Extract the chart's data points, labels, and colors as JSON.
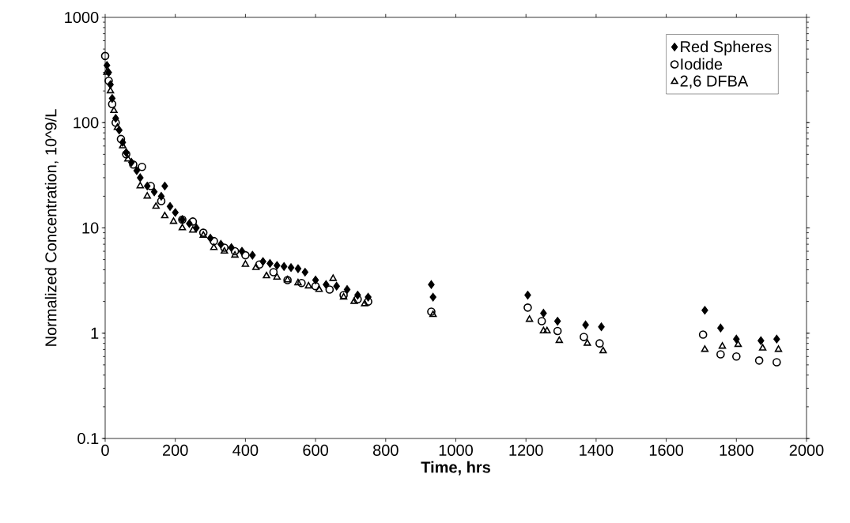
{
  "chart_data": {
    "type": "scatter",
    "xlabel": "Time, hrs",
    "ylabel": "Normalized Concentration, 10^9/L",
    "log": "y",
    "xlim": [
      0,
      2000
    ],
    "ylim": [
      0.1,
      1000
    ],
    "xticks": [
      0,
      200,
      400,
      600,
      800,
      1000,
      1200,
      1400,
      1600,
      1800,
      2000
    ],
    "yticks": [
      0.1,
      1,
      10,
      100,
      1000
    ],
    "legend": "top right",
    "grid": false,
    "series": [
      {
        "name": "Red Spheres",
        "color": "#000000",
        "marker": "diamond",
        "x": [
          5,
          10,
          15,
          20,
          25,
          30,
          40,
          50,
          60,
          75,
          90,
          100,
          120,
          140,
          160,
          170,
          185,
          200,
          220,
          240,
          260,
          280,
          300,
          330,
          360,
          390,
          420,
          450,
          470,
          490,
          510,
          530,
          550,
          570,
          600,
          630,
          660,
          690,
          720,
          750,
          930,
          935,
          1205,
          1250,
          1290,
          1370,
          1415,
          1710,
          1755,
          1800,
          1870,
          1915
        ],
        "values": [
          350,
          300,
          230,
          170,
          null,
          110,
          85,
          65,
          52,
          42,
          35,
          30,
          25,
          22,
          20,
          25,
          16,
          14,
          12,
          11,
          10,
          null,
          8,
          7,
          6.5,
          6,
          5.5,
          4.8,
          4.6,
          4.4,
          4.3,
          4.2,
          4.1,
          3.8,
          3.2,
          2.9,
          2.8,
          2.6,
          2.3,
          2.2,
          2.9,
          2.2,
          2.3,
          1.55,
          1.3,
          1.2,
          1.15,
          1.65,
          1.12,
          0.88,
          0.85,
          0.88
        ]
      },
      {
        "name": "Iodide",
        "color": "#000000",
        "marker": "circle",
        "x": [
          0,
          10,
          20,
          30,
          45,
          60,
          80,
          105,
          130,
          160,
          190,
          220,
          250,
          280,
          310,
          340,
          370,
          400,
          440,
          480,
          520,
          560,
          600,
          640,
          680,
          720,
          750,
          930,
          1205,
          1245,
          1290,
          1365,
          1410,
          1705,
          1755,
          1800,
          1865,
          1915
        ],
        "values": [
          430,
          250,
          150,
          100,
          70,
          50,
          40,
          38,
          25,
          18,
          null,
          12,
          11.5,
          9,
          7.5,
          6.5,
          6,
          5.5,
          4.5,
          3.8,
          3.2,
          3,
          2.8,
          2.6,
          2.3,
          2.1,
          2,
          1.6,
          1.75,
          1.3,
          1.05,
          0.92,
          0.8,
          0.97,
          0.63,
          0.6,
          0.55,
          0.53
        ]
      },
      {
        "name": "2,6 DFBA",
        "color": "#000000",
        "marker": "triangle",
        "x": [
          5,
          15,
          25,
          35,
          50,
          65,
          80,
          100,
          120,
          145,
          170,
          195,
          220,
          250,
          280,
          310,
          340,
          370,
          400,
          430,
          460,
          490,
          520,
          550,
          580,
          610,
          650,
          680,
          710,
          740,
          935,
          1210,
          1250,
          1260,
          1295,
          1375,
          1420,
          1710,
          1760,
          1805,
          1875,
          1920
        ],
        "values": [
          300,
          200,
          130,
          90,
          60,
          45,
          null,
          25,
          20,
          16,
          13,
          11.5,
          10,
          9.5,
          8.5,
          6.5,
          6,
          5.5,
          4.5,
          4.2,
          3.5,
          3.4,
          3.2,
          3,
          2.8,
          2.6,
          3.3,
          2.2,
          2,
          1.9,
          1.5,
          1.35,
          1.05,
          1.05,
          0.85,
          0.8,
          0.68,
          0.7,
          0.75,
          0.78,
          0.72,
          0.7
        ]
      }
    ]
  }
}
